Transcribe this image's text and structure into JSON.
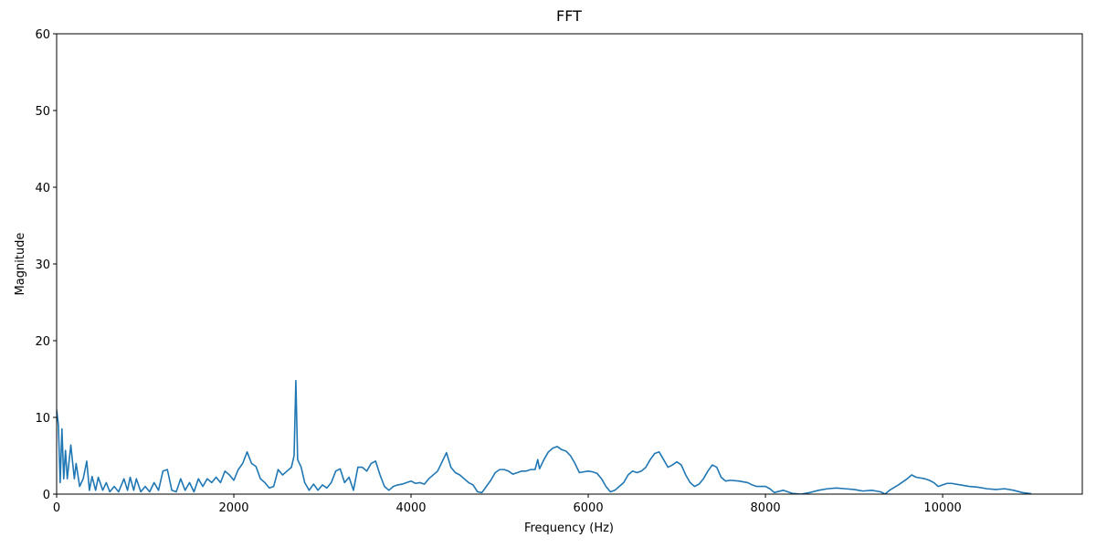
{
  "chart_data": {
    "type": "line",
    "title": "FFT",
    "x_label": "Frequency (Hz)",
    "y_label": "Magnitude",
    "xlim": [
      0,
      11576
    ],
    "ylim": [
      0,
      60
    ],
    "xticks": [
      0,
      2000,
      4000,
      6000,
      8000,
      10000
    ],
    "yticks": [
      0,
      10,
      20,
      30,
      40,
      50,
      60
    ],
    "grid": false,
    "x": [
      0,
      20,
      40,
      60,
      80,
      100,
      120,
      160,
      200,
      220,
      260,
      300,
      340,
      370,
      400,
      440,
      470,
      520,
      560,
      600,
      650,
      700,
      760,
      800,
      830,
      870,
      900,
      950,
      1000,
      1050,
      1100,
      1150,
      1200,
      1250,
      1300,
      1350,
      1400,
      1450,
      1500,
      1550,
      1600,
      1650,
      1700,
      1750,
      1800,
      1850,
      1900,
      1950,
      2000,
      2050,
      2100,
      2150,
      2200,
      2250,
      2300,
      2350,
      2400,
      2450,
      2500,
      2550,
      2600,
      2650,
      2680,
      2700,
      2720,
      2760,
      2800,
      2850,
      2900,
      2950,
      3000,
      3050,
      3100,
      3150,
      3200,
      3250,
      3300,
      3350,
      3400,
      3450,
      3500,
      3550,
      3600,
      3650,
      3700,
      3750,
      3800,
      3850,
      3900,
      3950,
      4000,
      4050,
      4100,
      4150,
      4200,
      4300,
      4350,
      4400,
      4450,
      4500,
      4550,
      4600,
      4650,
      4700,
      4750,
      4800,
      4850,
      4900,
      4950,
      5000,
      5050,
      5100,
      5150,
      5200,
      5250,
      5300,
      5350,
      5400,
      5430,
      5450,
      5500,
      5550,
      5600,
      5650,
      5700,
      5750,
      5800,
      5850,
      5900,
      5950,
      6000,
      6050,
      6100,
      6150,
      6200,
      6250,
      6300,
      6350,
      6400,
      6450,
      6500,
      6550,
      6600,
      6650,
      6700,
      6750,
      6800,
      6850,
      6900,
      6950,
      7000,
      7050,
      7100,
      7150,
      7200,
      7250,
      7300,
      7350,
      7400,
      7450,
      7500,
      7550,
      7600,
      7700,
      7800,
      7850,
      7900,
      7950,
      8000,
      8050,
      8100,
      8200,
      8300,
      8400,
      8500,
      8600,
      8700,
      8800,
      8900,
      9000,
      9050,
      9100,
      9200,
      9300,
      9350,
      9400,
      9500,
      9600,
      9650,
      9700,
      9800,
      9850,
      9900,
      9950,
      10000,
      10050,
      10100,
      10200,
      10300,
      10400,
      10500,
      10600,
      10700,
      10800,
      10900,
      11000
    ],
    "series": [
      {
        "color": "#1f77b4",
        "values": [
          11,
          9,
          1.5,
          8.5,
          2,
          5.7,
          2,
          6.4,
          2,
          4,
          1,
          2,
          4.3,
          0.5,
          2.3,
          0.5,
          2.2,
          0.5,
          1.5,
          0.3,
          1,
          0.3,
          2,
          0.5,
          2.2,
          0.5,
          2,
          0.3,
          1,
          0.3,
          1.5,
          0.5,
          3,
          3.2,
          0.5,
          0.3,
          2,
          0.5,
          1.5,
          0.3,
          2,
          1,
          2,
          1.5,
          2.2,
          1.5,
          3,
          2.5,
          1.8,
          3.2,
          4,
          5.5,
          4,
          3.6,
          2,
          1.5,
          0.8,
          1,
          3.2,
          2.5,
          3,
          3.5,
          5,
          14.8,
          4.5,
          3.5,
          1.5,
          0.5,
          1.3,
          0.5,
          1.2,
          0.8,
          1.5,
          3,
          3.3,
          1.5,
          2.2,
          0.5,
          3.5,
          3.5,
          3,
          4,
          4.3,
          2.5,
          1,
          0.5,
          1,
          1.2,
          1.3,
          1.5,
          1.7,
          1.4,
          1.5,
          1.3,
          2,
          3,
          4.2,
          5.4,
          3.5,
          2.8,
          2.5,
          2,
          1.5,
          1.2,
          0.3,
          0.2,
          1,
          1.8,
          2.8,
          3.2,
          3.2,
          3,
          2.6,
          2.8,
          3,
          3,
          3.2,
          3.2,
          4.5,
          3.3,
          4.5,
          5.5,
          6,
          6.2,
          5.8,
          5.6,
          5,
          4,
          2.8,
          2.9,
          3,
          2.9,
          2.7,
          2,
          1,
          0.3,
          0.5,
          1,
          1.5,
          2.5,
          3,
          2.8,
          3,
          3.5,
          4.5,
          5.3,
          5.5,
          4.5,
          3.5,
          3.8,
          4.2,
          3.8,
          2.5,
          1.5,
          1,
          1.3,
          2,
          3,
          3.8,
          3.5,
          2.2,
          1.7,
          1.8,
          1.7,
          1.5,
          1.2,
          1,
          1,
          1,
          0.7,
          0.2,
          0.5,
          0.1,
          0,
          0.2,
          0.5,
          0.7,
          0.8,
          0.7,
          0.6,
          0.5,
          0.4,
          0.5,
          0.3,
          0,
          0.5,
          1.2,
          2,
          2.5,
          2.2,
          2,
          1.8,
          1.5,
          1,
          1.2,
          1.4,
          1.4,
          1.2,
          1,
          0.9,
          0.7,
          0.6,
          0.7,
          0.5,
          0.2,
          0.05
        ]
      }
    ]
  }
}
